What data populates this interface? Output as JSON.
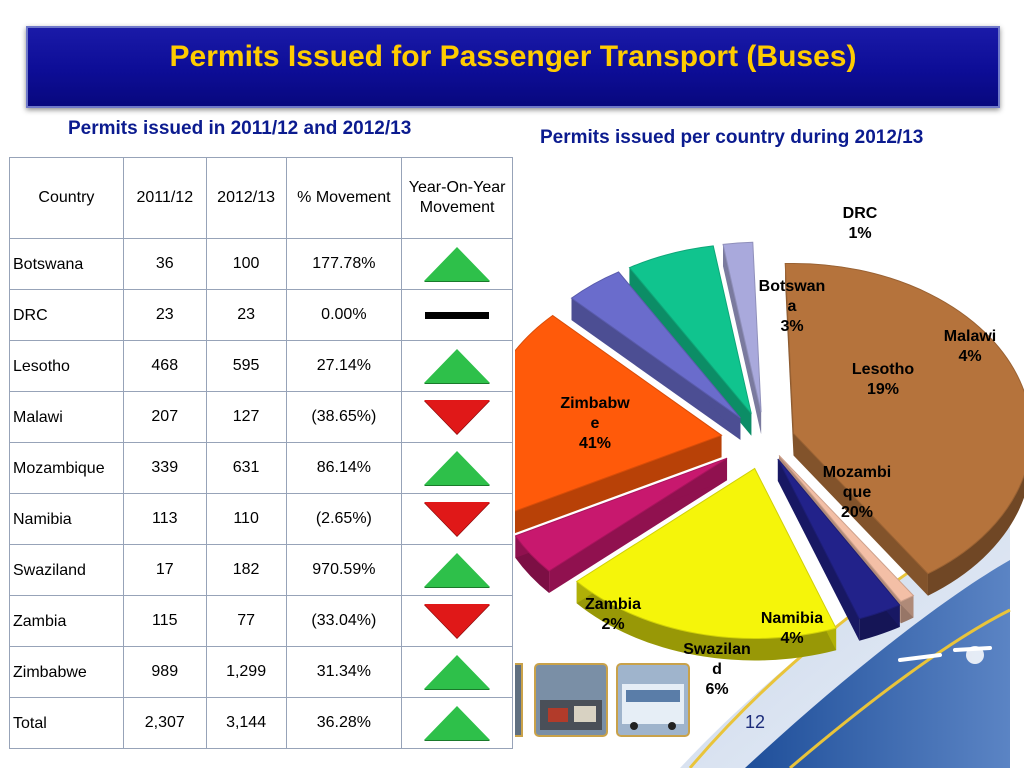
{
  "title": "Permits Issued for Passenger Transport (Buses)",
  "table_title": "Permits issued in 2011/12 and 2012/13",
  "chart_title": "Permits issued per country during 2012/13",
  "slide_number": "12",
  "colors": {
    "title_text": "#ffcc00",
    "title_bg": "#0d0d96",
    "up": "#2ec04a",
    "down": "#e01818"
  },
  "table": {
    "headers": [
      "Country",
      "2011/12",
      "2012/13",
      "% Movement",
      "Year-On-Year Movement"
    ],
    "rows": [
      {
        "country": "Botswana",
        "y2011": "36",
        "y2012": "100",
        "movement": "177.78%",
        "trend": "up"
      },
      {
        "country": "DRC",
        "y2011": "23",
        "y2012": "23",
        "movement": "0.00%",
        "trend": "flat"
      },
      {
        "country": "Lesotho",
        "y2011": "468",
        "y2012": "595",
        "movement": "27.14%",
        "trend": "up"
      },
      {
        "country": "Malawi",
        "y2011": "207",
        "y2012": "127",
        "movement": "(38.65%)",
        "trend": "down"
      },
      {
        "country": "Mozambique",
        "y2011": "339",
        "y2012": "631",
        "movement": "86.14%",
        "trend": "up"
      },
      {
        "country": "Namibia",
        "y2011": "113",
        "y2012": "110",
        "movement": "(2.65%)",
        "trend": "down"
      },
      {
        "country": "Swaziland",
        "y2011": "17",
        "y2012": "182",
        "movement": "970.59%",
        "trend": "up"
      },
      {
        "country": "Zambia",
        "y2011": "115",
        "y2012": "77",
        "movement": "(33.04%)",
        "trend": "down"
      },
      {
        "country": "Zimbabwe",
        "y2011": "989",
        "y2012": "1,299",
        "movement": "31.34%",
        "trend": "up"
      },
      {
        "country": "Total",
        "y2011": "2,307",
        "y2012": "3,144",
        "movement": "36.28%",
        "trend": "up"
      }
    ]
  },
  "chart_data": {
    "type": "pie",
    "title": "Permits issued per country during 2012/13",
    "slices": [
      {
        "label": "Zimbabwe",
        "percent": 41,
        "color": "#b5733c",
        "label_lines": [
          "Zimbabw",
          "e",
          "41%"
        ]
      },
      {
        "label": "DRC",
        "percent": 1,
        "color": "#f3bfa6",
        "label_lines": [
          "DRC",
          "1%"
        ]
      },
      {
        "label": "Botswana",
        "percent": 3,
        "color": "#22228a",
        "label_lines": [
          "Botswan",
          "a",
          "3%"
        ]
      },
      {
        "label": "Lesotho",
        "percent": 19,
        "color": "#f5f50a",
        "label_lines": [
          "Lesotho",
          "19%"
        ]
      },
      {
        "label": "Malawi",
        "percent": 4,
        "color": "#c8186e",
        "label_lines": [
          "Malawi",
          "4%"
        ]
      },
      {
        "label": "Mozambique",
        "percent": 20,
        "color": "#ff5a0a",
        "label_lines": [
          "Mozambi",
          "que",
          "20%"
        ]
      },
      {
        "label": "Namibia",
        "percent": 4,
        "color": "#6a6ccc",
        "label_lines": [
          "Namibia",
          "4%"
        ]
      },
      {
        "label": "Swaziland",
        "percent": 6,
        "color": "#10c48e",
        "label_lines": [
          "Swazilan",
          "d",
          "6%"
        ]
      },
      {
        "label": "Zambia",
        "percent": 2,
        "color": "#a9a9dc",
        "label_lines": [
          "Zambia",
          "2%"
        ]
      }
    ]
  }
}
